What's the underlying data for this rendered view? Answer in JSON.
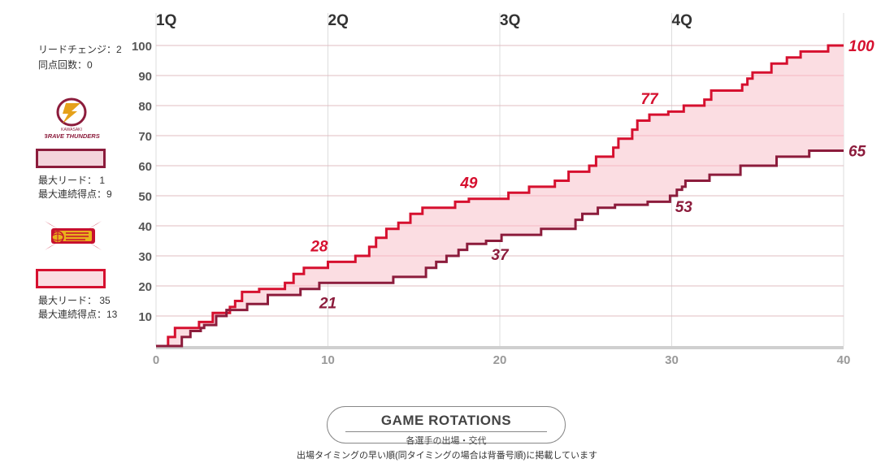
{
  "chart_data": {
    "type": "line",
    "xlim": [
      0,
      40
    ],
    "ylim": [
      0,
      100
    ],
    "x_ticks": [
      "0",
      "10",
      "20",
      "30",
      "40"
    ],
    "y_ticks": [
      "10",
      "20",
      "30",
      "40",
      "50",
      "60",
      "70",
      "80",
      "90",
      "100"
    ],
    "quarter_labels": [
      "1Q",
      "2Q",
      "3Q",
      "4Q"
    ],
    "grid": true,
    "series": [
      {
        "color": "#d6102f",
        "fill": "#fbdde2",
        "points": [
          [
            0,
            0
          ],
          [
            0.7,
            0
          ],
          [
            0.7,
            3
          ],
          [
            1.1,
            3
          ],
          [
            1.1,
            6
          ],
          [
            2.5,
            6
          ],
          [
            2.5,
            8
          ],
          [
            3.3,
            8
          ],
          [
            3.3,
            11
          ],
          [
            4.3,
            11
          ],
          [
            4.3,
            13
          ],
          [
            4.6,
            13
          ],
          [
            4.6,
            15
          ],
          [
            5.0,
            15
          ],
          [
            5.0,
            18
          ],
          [
            6.0,
            18
          ],
          [
            6.0,
            19
          ],
          [
            7.5,
            19
          ],
          [
            7.5,
            21
          ],
          [
            8.0,
            21
          ],
          [
            8.0,
            24
          ],
          [
            8.6,
            24
          ],
          [
            8.6,
            26
          ],
          [
            10.0,
            26
          ],
          [
            10.0,
            28
          ],
          [
            11.6,
            28
          ],
          [
            11.6,
            30
          ],
          [
            12.4,
            30
          ],
          [
            12.4,
            33
          ],
          [
            12.8,
            33
          ],
          [
            12.8,
            36
          ],
          [
            13.4,
            36
          ],
          [
            13.4,
            39
          ],
          [
            14.1,
            39
          ],
          [
            14.1,
            41
          ],
          [
            14.8,
            41
          ],
          [
            14.8,
            44
          ],
          [
            15.5,
            44
          ],
          [
            15.5,
            46
          ],
          [
            17.4,
            46
          ],
          [
            17.4,
            48
          ],
          [
            18.2,
            48
          ],
          [
            18.2,
            49
          ],
          [
            20.5,
            49
          ],
          [
            20.5,
            51
          ],
          [
            21.7,
            51
          ],
          [
            21.7,
            53
          ],
          [
            23.2,
            53
          ],
          [
            23.2,
            55
          ],
          [
            24.0,
            55
          ],
          [
            24.0,
            58
          ],
          [
            25.2,
            58
          ],
          [
            25.2,
            60
          ],
          [
            25.6,
            60
          ],
          [
            25.6,
            63
          ],
          [
            26.6,
            63
          ],
          [
            26.6,
            66
          ],
          [
            26.9,
            66
          ],
          [
            26.9,
            69
          ],
          [
            27.7,
            69
          ],
          [
            27.7,
            72
          ],
          [
            28.0,
            72
          ],
          [
            28.0,
            75
          ],
          [
            28.7,
            75
          ],
          [
            28.7,
            77
          ],
          [
            29.8,
            77
          ],
          [
            29.8,
            78
          ],
          [
            30.7,
            78
          ],
          [
            30.7,
            80
          ],
          [
            31.9,
            80
          ],
          [
            31.9,
            82
          ],
          [
            32.3,
            82
          ],
          [
            32.3,
            85
          ],
          [
            34.1,
            85
          ],
          [
            34.1,
            87
          ],
          [
            34.4,
            87
          ],
          [
            34.4,
            89
          ],
          [
            34.7,
            89
          ],
          [
            34.7,
            91
          ],
          [
            35.8,
            91
          ],
          [
            35.8,
            94
          ],
          [
            36.7,
            94
          ],
          [
            36.7,
            96
          ],
          [
            37.5,
            96
          ],
          [
            37.5,
            98
          ],
          [
            39.1,
            98
          ],
          [
            39.1,
            100
          ],
          [
            40.0,
            100
          ]
        ]
      },
      {
        "color": "#8c1c3c",
        "points": [
          [
            0,
            0
          ],
          [
            1.5,
            0
          ],
          [
            1.5,
            3
          ],
          [
            2.0,
            3
          ],
          [
            2.0,
            5
          ],
          [
            2.6,
            5
          ],
          [
            2.6,
            6
          ],
          [
            2.8,
            6
          ],
          [
            2.8,
            7
          ],
          [
            3.5,
            7
          ],
          [
            3.5,
            10
          ],
          [
            4.1,
            10
          ],
          [
            4.1,
            12
          ],
          [
            5.3,
            12
          ],
          [
            5.3,
            14
          ],
          [
            6.5,
            14
          ],
          [
            6.5,
            17
          ],
          [
            8.4,
            17
          ],
          [
            8.4,
            19
          ],
          [
            9.5,
            19
          ],
          [
            9.5,
            21
          ],
          [
            13.8,
            21
          ],
          [
            13.8,
            23
          ],
          [
            15.7,
            23
          ],
          [
            15.7,
            26
          ],
          [
            16.3,
            26
          ],
          [
            16.3,
            28
          ],
          [
            16.9,
            28
          ],
          [
            16.9,
            30
          ],
          [
            17.6,
            30
          ],
          [
            17.6,
            32
          ],
          [
            18.1,
            32
          ],
          [
            18.1,
            34
          ],
          [
            19.2,
            34
          ],
          [
            19.2,
            35
          ],
          [
            20.1,
            35
          ],
          [
            20.1,
            37
          ],
          [
            22.4,
            37
          ],
          [
            22.4,
            39
          ],
          [
            24.4,
            39
          ],
          [
            24.4,
            42
          ],
          [
            24.8,
            42
          ],
          [
            24.8,
            44
          ],
          [
            25.7,
            44
          ],
          [
            25.7,
            46
          ],
          [
            26.7,
            46
          ],
          [
            26.7,
            47
          ],
          [
            28.6,
            47
          ],
          [
            28.6,
            48
          ],
          [
            29.9,
            48
          ],
          [
            29.9,
            50
          ],
          [
            30.3,
            50
          ],
          [
            30.3,
            52
          ],
          [
            30.6,
            52
          ],
          [
            30.6,
            53
          ],
          [
            30.8,
            53
          ],
          [
            30.8,
            55
          ],
          [
            32.2,
            55
          ],
          [
            32.2,
            57
          ],
          [
            34.0,
            57
          ],
          [
            34.0,
            60
          ],
          [
            36.1,
            60
          ],
          [
            36.1,
            63
          ],
          [
            38.0,
            63
          ],
          [
            38.0,
            65
          ],
          [
            40.0,
            65
          ]
        ]
      }
    ],
    "annotations": [
      {
        "text": "100",
        "x": 40.0,
        "y": 100,
        "series": 0,
        "side": "right"
      },
      {
        "text": "77",
        "x": 28.7,
        "y": 77,
        "series": 0,
        "side": "above"
      },
      {
        "text": "49",
        "x": 18.2,
        "y": 49,
        "series": 0,
        "side": "above"
      },
      {
        "text": "28",
        "x": 9.5,
        "y": 28,
        "series": 0,
        "side": "above"
      },
      {
        "text": "65",
        "x": 40.0,
        "y": 65,
        "series": 1,
        "side": "right"
      },
      {
        "text": "53",
        "x": 30.7,
        "y": 53,
        "series": 1,
        "side": "below"
      },
      {
        "text": "37",
        "x": 20.0,
        "y": 37,
        "series": 1,
        "side": "below"
      },
      {
        "text": "21",
        "x": 10.0,
        "y": 21,
        "series": 1,
        "side": "below"
      }
    ]
  },
  "sidebar": {
    "lead_changes": "リードチェンジ：2",
    "ties": "同点回数：0",
    "team1": {
      "logo_label": "BRAVE THUNDERS",
      "logo_small": "KAWASAKI",
      "max_lead": "最大リード： 1",
      "max_run": "最大連続得点：9",
      "box_border": "#8c1c3c",
      "box_fill": "#f4d4dc",
      "logo_icon": "thunder-logo-icon"
    },
    "team2": {
      "max_lead": "最大リード： 35",
      "max_run": "最大連続得点：13",
      "box_border": "#d6102f",
      "box_fill": "#fbdde2",
      "logo_icon": "jets-logo-icon"
    }
  },
  "footer": {
    "title": "GAME ROTATIONS",
    "subtitle": "各選手の出場・交代",
    "note": "出場タイミングの早い順(同タイミングの場合は背番号順)に掲載しています"
  }
}
